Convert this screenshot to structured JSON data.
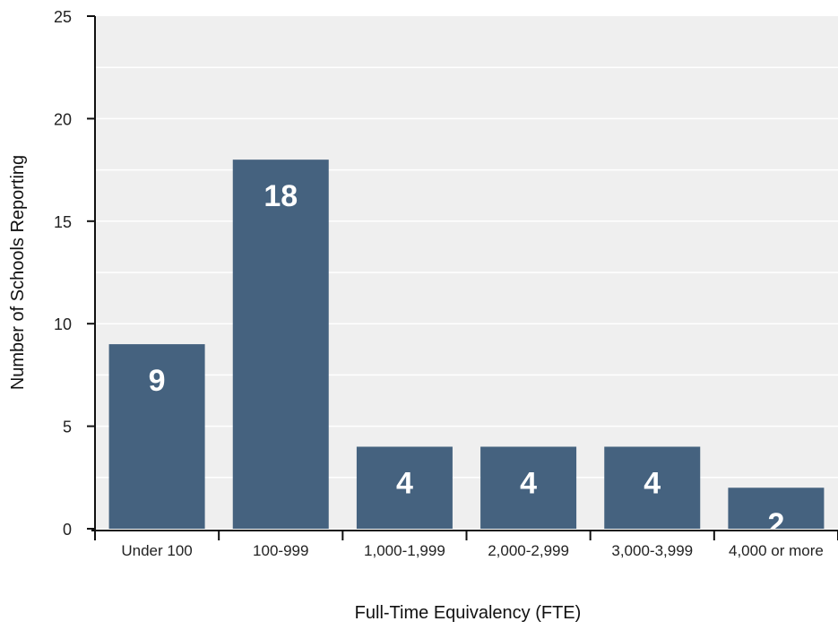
{
  "chart_data": {
    "type": "bar",
    "categories": [
      "Under 100",
      "100-999",
      "1,000-1,999",
      "2,000-2,999",
      "3,000-3,999",
      "4,000 or more"
    ],
    "values": [
      9,
      18,
      4,
      4,
      4,
      2
    ],
    "data_labels": [
      "9",
      "18",
      "4",
      "4",
      "4",
      "2"
    ],
    "title": "",
    "xlabel": "Full-Time Equivalency (FTE)",
    "ylabel": "Number of Schools Reporting",
    "ylim": [
      0,
      25
    ],
    "yticks": [
      0,
      5,
      10,
      15,
      20,
      25
    ],
    "grid": true,
    "legend": "none",
    "colors": {
      "bar": "#45627f",
      "plot_background": "#efefef",
      "gridline": "#ffffff",
      "axis": "#111111"
    }
  }
}
